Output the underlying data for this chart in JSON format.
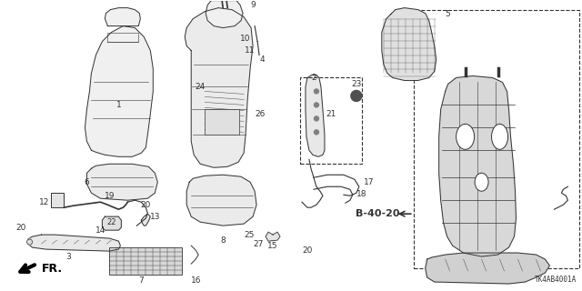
{
  "bg_color": "#ffffff",
  "line_color": "#333333",
  "part_id": "TK4AB4001A",
  "fig_w": 6.4,
  "fig_h": 3.2,
  "dpi": 100
}
